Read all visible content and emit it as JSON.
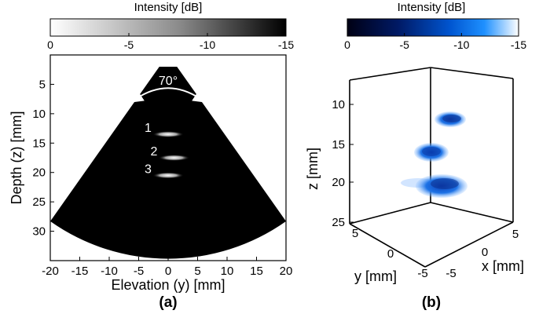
{
  "figure": {
    "panel_a_label": "(a)",
    "panel_b_label": "(b)"
  },
  "chart_data": [
    {
      "type": "heatmap",
      "panel": "(a)",
      "xlabel": "Elevation (y) [mm]",
      "ylabel": "Depth (z) [mm]",
      "xlim": [
        -20,
        20
      ],
      "ylim": [
        0,
        35
      ],
      "y_reversed": true,
      "x_ticks": [
        -20,
        -15,
        -10,
        -5,
        0,
        5,
        10,
        15,
        20
      ],
      "y_ticks": [
        5,
        10,
        15,
        20,
        25,
        30
      ],
      "sector": {
        "apex_depth": 2,
        "angle_label": "70°",
        "half_angle_deg": 35,
        "max_depth": 35
      },
      "colorbar": {
        "title": "Intensity [dB]",
        "ticks": [
          0,
          -5,
          -10,
          -15
        ],
        "tick_labels": [
          "0",
          "-5",
          "-10",
          "-15"
        ],
        "colormap": [
          "#ffffff",
          "#000000"
        ]
      },
      "targets": [
        {
          "label": "1",
          "y": 0,
          "z": 13.5
        },
        {
          "label": "2",
          "y": 1,
          "z": 17.5
        },
        {
          "label": "3",
          "y": 0,
          "z": 20.5
        }
      ]
    },
    {
      "type": "scatter",
      "panel": "(b)",
      "xlabel": "x [mm]",
      "ylabel": "y [mm]",
      "zlabel": "z [mm]",
      "x_ticks": [
        5,
        0,
        -5
      ],
      "y_ticks": [
        5,
        0,
        -5
      ],
      "z_ticks": [
        10,
        15,
        20,
        25
      ],
      "colorbar": {
        "title": "Intensity [dB]",
        "ticks": [
          0,
          -5,
          -10,
          -15
        ],
        "tick_labels": [
          "0",
          "-5",
          "-10",
          "-15"
        ],
        "colormap": [
          "#000018",
          "#0033a0",
          "#0080ff",
          "#ffffff"
        ]
      },
      "blobs": [
        {
          "x": 0,
          "y": 0,
          "z": 12
        },
        {
          "x": 0,
          "y": 0,
          "z": 17
        },
        {
          "x": 0,
          "y": 0,
          "z": 21
        }
      ]
    }
  ]
}
